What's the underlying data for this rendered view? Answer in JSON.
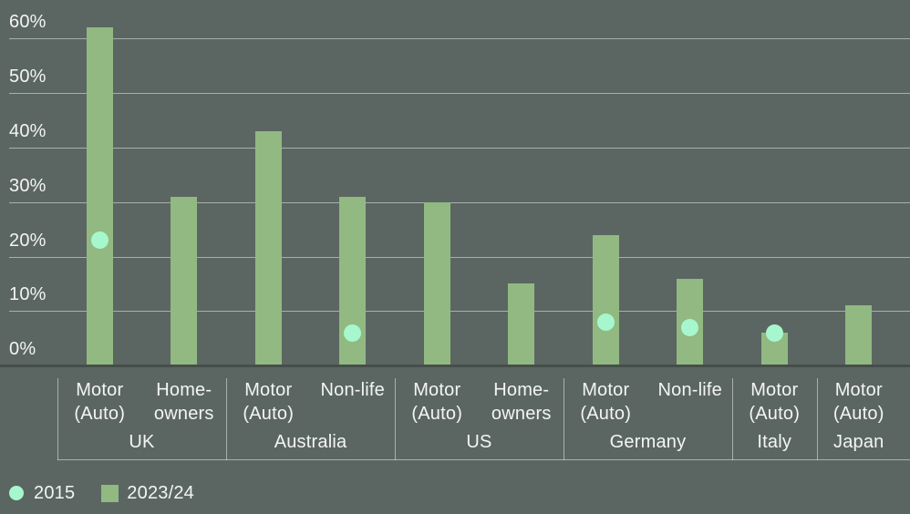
{
  "colors": {
    "background": "#5b6662",
    "bar_2023_24": "#91b981",
    "dot_2015": "#a7f7ce",
    "gridline": "rgba(244,248,245,0.5)",
    "baseline": "#454e4a",
    "axis_line": "rgba(244,248,245,0.5)",
    "text": "#f3f5f3"
  },
  "chart_data": {
    "type": "bar",
    "title": "",
    "xlabel": "",
    "ylabel": "",
    "ylim": [
      0,
      60
    ],
    "ytick_step": 10,
    "ytick_labels": [
      "0%",
      "10%",
      "20%",
      "30%",
      "40%",
      "50%",
      "60%"
    ],
    "grid": "horizontal",
    "legend_position": "bottom-left",
    "categories": [
      {
        "label": "Motor (Auto)",
        "lines": [
          "Motor",
          "(Auto)"
        ],
        "group": "UK"
      },
      {
        "label": "Home-owners",
        "lines": [
          "Home-",
          "owners"
        ],
        "group": "UK"
      },
      {
        "label": "Motor (Auto)",
        "lines": [
          "Motor",
          "(Auto)"
        ],
        "group": "Australia"
      },
      {
        "label": "Non-life",
        "lines": [
          "Non-life"
        ],
        "group": "Australia"
      },
      {
        "label": "Motor (Auto)",
        "lines": [
          "Motor",
          "(Auto)"
        ],
        "group": "US"
      },
      {
        "label": "Home-owners",
        "lines": [
          "Home-",
          "owners"
        ],
        "group": "US"
      },
      {
        "label": "Motor (Auto)",
        "lines": [
          "Motor",
          "(Auto)"
        ],
        "group": "Germany"
      },
      {
        "label": "Non-life",
        "lines": [
          "Non-life"
        ],
        "group": "Germany"
      },
      {
        "label": "Motor (Auto)",
        "lines": [
          "Motor",
          "(Auto)"
        ],
        "group": "Italy"
      },
      {
        "label": "Motor (Auto)",
        "lines": [
          "Motor",
          "(Auto)"
        ],
        "group": "Japan"
      }
    ],
    "groups": [
      {
        "label": "UK",
        "span": 2
      },
      {
        "label": "Australia",
        "span": 2
      },
      {
        "label": "US",
        "span": 2
      },
      {
        "label": "Germany",
        "span": 2
      },
      {
        "label": "Italy",
        "span": 1
      },
      {
        "label": "Japan",
        "span": 1
      }
    ],
    "series": [
      {
        "name": "2015",
        "style": "dot",
        "color": "#a7f7ce",
        "values": [
          23,
          null,
          null,
          6,
          null,
          null,
          8,
          7,
          6,
          null
        ]
      },
      {
        "name": "2023/24",
        "style": "bar",
        "color": "#91b981",
        "values": [
          62,
          31,
          43,
          31,
          30,
          15,
          24,
          16,
          6,
          11
        ]
      }
    ]
  },
  "legend": {
    "items": [
      {
        "label": "2015",
        "swatch": "circle"
      },
      {
        "label": "2023/24",
        "swatch": "square"
      }
    ]
  }
}
